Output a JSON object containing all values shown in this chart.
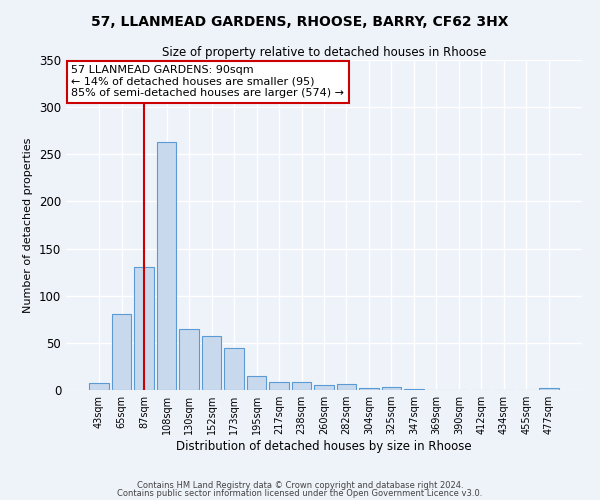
{
  "title": "57, LLANMEAD GARDENS, RHOOSE, BARRY, CF62 3HX",
  "subtitle": "Size of property relative to detached houses in Rhoose",
  "xlabel": "Distribution of detached houses by size in Rhoose",
  "ylabel": "Number of detached properties",
  "bar_labels": [
    "43sqm",
    "65sqm",
    "87sqm",
    "108sqm",
    "130sqm",
    "152sqm",
    "173sqm",
    "195sqm",
    "217sqm",
    "238sqm",
    "260sqm",
    "282sqm",
    "304sqm",
    "325sqm",
    "347sqm",
    "369sqm",
    "390sqm",
    "412sqm",
    "434sqm",
    "455sqm",
    "477sqm"
  ],
  "bar_values": [
    7,
    81,
    130,
    263,
    65,
    57,
    45,
    15,
    8,
    8,
    5,
    6,
    2,
    3,
    1,
    0,
    0,
    0,
    0,
    0,
    2
  ],
  "bar_color": "#c9d9ed",
  "bar_edge_color": "#5b9bd5",
  "ylim": [
    0,
    350
  ],
  "yticks": [
    0,
    50,
    100,
    150,
    200,
    250,
    300,
    350
  ],
  "vline_idx": 2,
  "annotation_title": "57 LLANMEAD GARDENS: 90sqm",
  "annotation_line1": "← 14% of detached houses are smaller (95)",
  "annotation_line2": "85% of semi-detached houses are larger (574) →",
  "annotation_box_color": "#ffffff",
  "annotation_box_edge": "#cc0000",
  "vline_color": "#cc0000",
  "footnote1": "Contains HM Land Registry data © Crown copyright and database right 2024.",
  "footnote2": "Contains public sector information licensed under the Open Government Licence v3.0.",
  "bg_color": "#eef2f9",
  "grid_color": "#ffffff"
}
